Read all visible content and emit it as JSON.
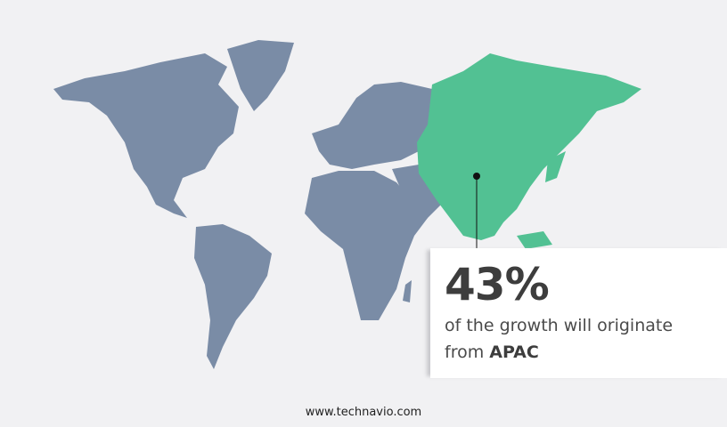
{
  "colors": {
    "background": "#f1f1f3",
    "land": "#7a8ca6",
    "highlight": "#52c193",
    "text": "#3d3d3d"
  },
  "callout": {
    "percent": "43%",
    "text": "of the growth will originate",
    "prefix": "from",
    "region": "APAC"
  },
  "footer": {
    "site": "www.technavio.com"
  }
}
